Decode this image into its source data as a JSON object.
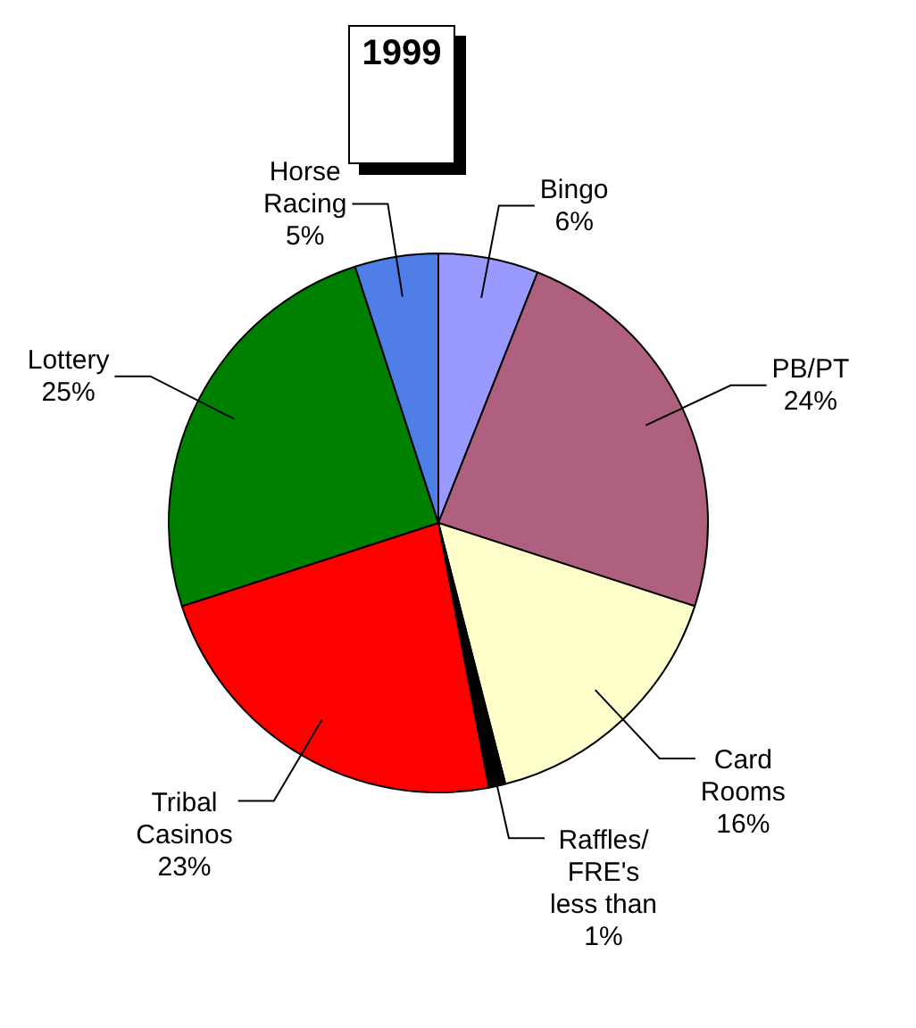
{
  "chart_data": {
    "type": "pie",
    "title": "1999",
    "categories": [
      "Bingo",
      "PB/PT",
      "Card Rooms",
      "Raffles/FRE's",
      "Tribal Casinos",
      "Lottery",
      "Horse Racing"
    ],
    "values": [
      6,
      24,
      16,
      1,
      23,
      25,
      5
    ],
    "value_labels": [
      "6%",
      "24%",
      "16%",
      "less than 1%",
      "23%",
      "25%",
      "5%"
    ],
    "colors": [
      "#9999ff",
      "#b0607f",
      "#ffffcc",
      "#000000",
      "#ff0000",
      "#008000",
      "#4f7fe6"
    ],
    "legend": false
  }
}
